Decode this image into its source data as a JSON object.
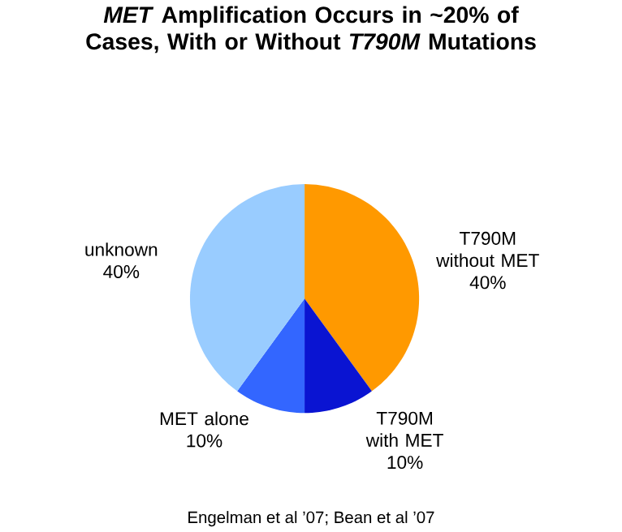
{
  "chart_data": {
    "type": "pie",
    "title": "*MET* Amplification Occurs in ~20% of Cases, With or Without *T790M* Mutations",
    "categories": [
      "T790M without MET",
      "T790M with MET",
      "MET alone",
      "unknown"
    ],
    "values": [
      40,
      10,
      10,
      40
    ],
    "value_labels": [
      "40%",
      "10%",
      "10%",
      "40%"
    ],
    "colors": [
      "#ff9900",
      "#0a14d2",
      "#3366ff",
      "#99ccff"
    ],
    "annotations": [
      "Engelman et al ’07; Bean et al ’07"
    ]
  }
}
